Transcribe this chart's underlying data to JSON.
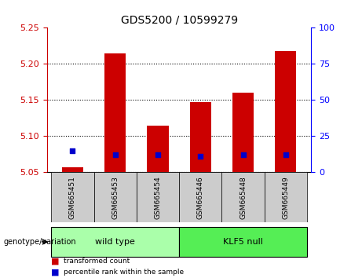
{
  "title": "GDS5200 / 10599279",
  "samples": [
    "GSM665451",
    "GSM665453",
    "GSM665454",
    "GSM665446",
    "GSM665448",
    "GSM665449"
  ],
  "groups": [
    "wild type",
    "wild type",
    "wild type",
    "KLF5 null",
    "KLF5 null",
    "KLF5 null"
  ],
  "transformed_count": [
    5.057,
    5.215,
    5.115,
    5.147,
    5.16,
    5.218
  ],
  "percentile_rank": [
    15,
    12,
    12,
    11,
    12,
    12
  ],
  "ylim": [
    5.05,
    5.25
  ],
  "yticks": [
    5.05,
    5.1,
    5.15,
    5.2,
    5.25
  ],
  "right_yticks": [
    0,
    25,
    50,
    75,
    100
  ],
  "bar_color": "#CC0000",
  "percentile_color": "#0000CC",
  "bg_plot": "#FFFFFF",
  "bg_sample": "#CCCCCC",
  "bg_wildtype": "#AAFFAA",
  "bg_klf5": "#55EE55",
  "wildtype_label": "wild type",
  "klf5_label": "KLF5 null",
  "genotype_label": "genotype/variation",
  "legend_transformed": "transformed count",
  "legend_percentile": "percentile rank within the sample",
  "bar_width": 0.5,
  "ymin": 5.05,
  "ymax": 5.25
}
